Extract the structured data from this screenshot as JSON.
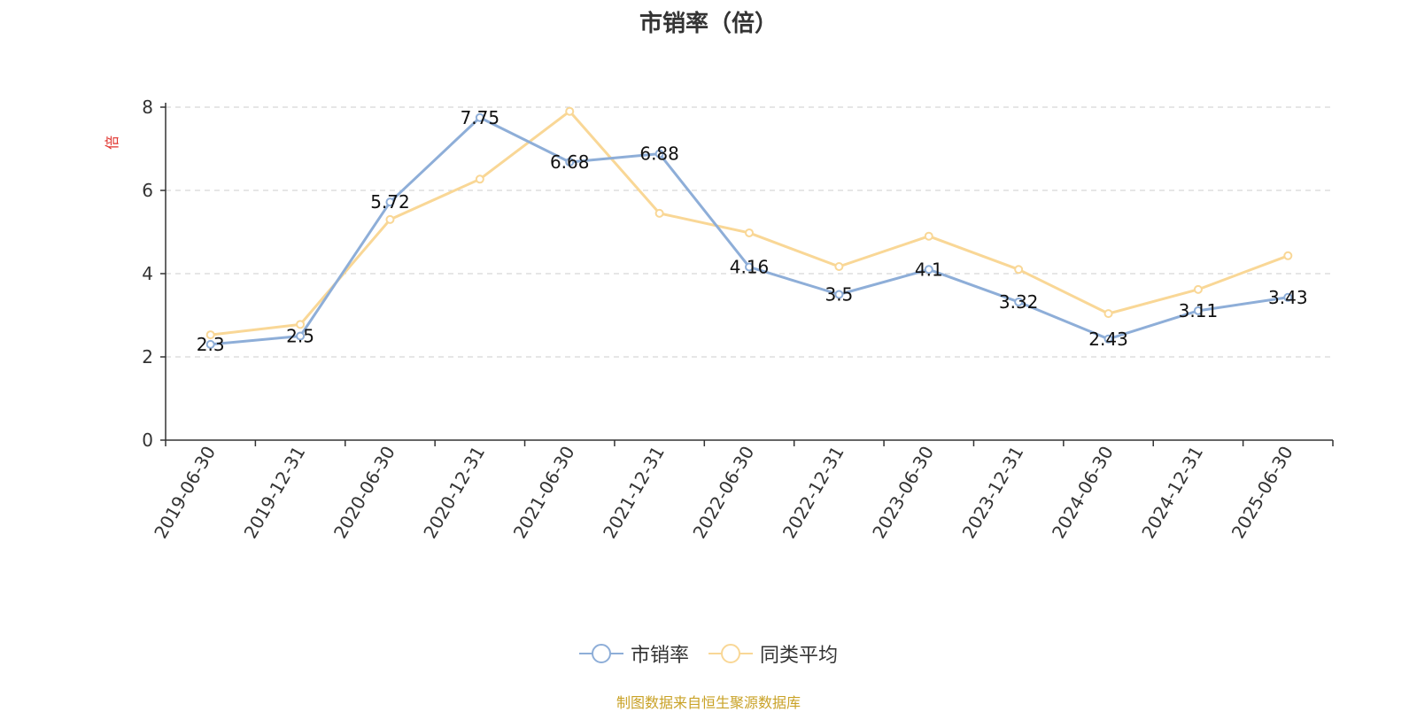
{
  "chart_data": {
    "type": "line",
    "title": "市销率（倍）",
    "ylabel": "倍",
    "xlabel": "",
    "ylim": [
      0,
      8
    ],
    "yticks": [
      0,
      2,
      4,
      6,
      8
    ],
    "grid": true,
    "legend_position": "bottom",
    "categories": [
      "2019-06-30",
      "2019-12-31",
      "2020-06-30",
      "2020-12-31",
      "2021-06-30",
      "2021-12-31",
      "2022-06-30",
      "2022-12-31",
      "2023-06-30",
      "2023-12-31",
      "2024-06-30",
      "2024-12-31",
      "2025-06-30"
    ],
    "series": [
      {
        "name": "市销率",
        "color": "#8eaed8",
        "values": [
          2.3,
          2.5,
          5.72,
          7.75,
          6.68,
          6.88,
          4.16,
          3.5,
          4.1,
          3.32,
          2.43,
          3.11,
          3.43
        ],
        "data_labels": [
          "2.3",
          "2.5",
          "5.72",
          "7.75",
          "6.68",
          "6.88",
          "4.16",
          "3.5",
          "4.1",
          "3.32",
          "2.43",
          "3.11",
          "3.43"
        ]
      },
      {
        "name": "同类平均",
        "color": "#f9d796",
        "values": [
          2.53,
          2.78,
          5.3,
          6.27,
          7.9,
          5.45,
          4.98,
          4.17,
          4.9,
          4.1,
          3.04,
          3.62,
          4.43
        ]
      }
    ]
  },
  "source_note": "制图数据来自恒生聚源数据库"
}
